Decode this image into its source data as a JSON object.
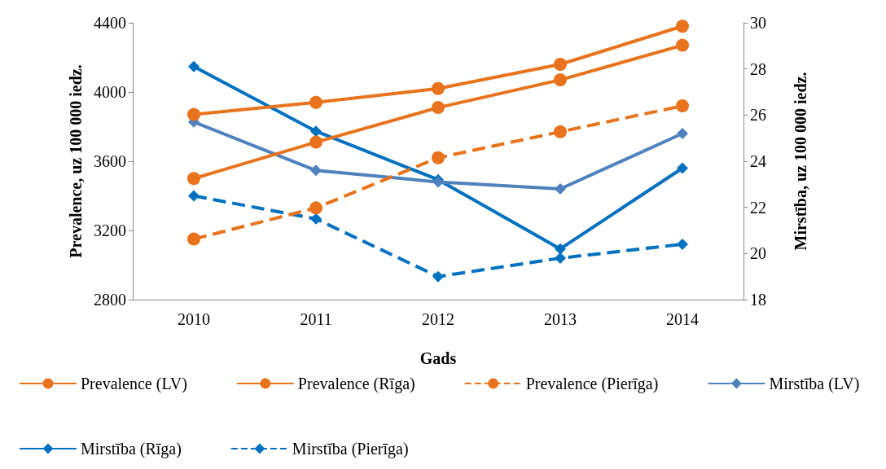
{
  "chart_data": {
    "type": "line",
    "xlabel": "Gads",
    "ylabel": "Prevalence, uz 100 000 iedz.",
    "y2label": "Mirstība, uz 100 000 iedz.",
    "categories": [
      "2010",
      "2011",
      "2012",
      "2013",
      "2014"
    ],
    "ylim": [
      2800,
      4400
    ],
    "yticks": [
      2800,
      3200,
      3600,
      4000,
      4400
    ],
    "y2lim": [
      18,
      30
    ],
    "y2ticks": [
      18,
      20,
      22,
      24,
      26,
      28,
      30
    ],
    "grid": false,
    "legend": "bottom",
    "series": [
      {
        "name": "Prevalence (LV)",
        "color": "#e8731c",
        "marker": "circle",
        "line_style": "solid",
        "values": [
          3500,
          3710,
          3910,
          4070,
          4270
        ]
      },
      {
        "name": "Prevalence (Rīga)",
        "color": "#e8731c",
        "marker": "circle",
        "line_style": "solid",
        "values": [
          3870,
          3940,
          4020,
          4160,
          4380
        ]
      },
      {
        "name": "Prevalence (Pierīga)",
        "color": "#e8731c",
        "marker": "circle",
        "line_style": "dashed",
        "values": [
          3150,
          3330,
          3620,
          3770,
          3920
        ]
      },
      {
        "name": "Mirstība (LV)",
        "color": "#4f81bd",
        "marker": "diamond",
        "line_style": "solid",
        "axis": "y2",
        "values": [
          25.7,
          23.6,
          23.1,
          22.8,
          25.2
        ]
      },
      {
        "name": "Mirstība (Rīga)",
        "color": "#0070c0",
        "marker": "diamond",
        "line_style": "solid",
        "axis": "y2",
        "values": [
          28.1,
          25.3,
          23.2,
          20.2,
          23.7
        ]
      },
      {
        "name": "Mirstība (Pierīga)",
        "color": "#0070c0",
        "marker": "diamond",
        "line_style": "dashed",
        "axis": "y2",
        "values": [
          22.5,
          21.5,
          19.0,
          19.8,
          20.4
        ]
      }
    ]
  }
}
